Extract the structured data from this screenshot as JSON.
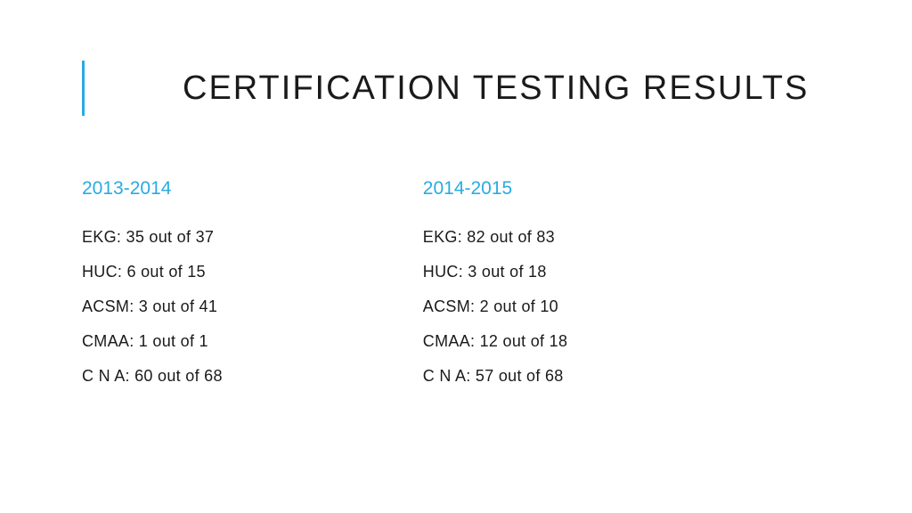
{
  "title": "CERTIFICATION TESTING RESULTS",
  "accent_color": "#29abe2",
  "text_color": "#1a1a1a",
  "background_color": "#ffffff",
  "title_fontsize": 38,
  "heading_fontsize": 21,
  "body_fontsize": 18,
  "columns": [
    {
      "heading": "2013-2014",
      "items": [
        "EKG: 35 out of 37",
        "HUC: 6 out of 15",
        "ACSM: 3 out of 41",
        "CMAA: 1 out of 1",
        "C N A: 60 out of 68"
      ]
    },
    {
      "heading": "2014-2015",
      "items": [
        "EKG: 82 out of 83",
        "HUC: 3 out of 18",
        "ACSM: 2 out of 10",
        "CMAA: 12 out of 18",
        "C N A: 57 out of 68"
      ]
    }
  ]
}
